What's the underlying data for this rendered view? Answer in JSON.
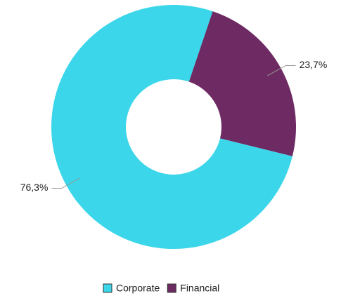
{
  "chart_data": {
    "type": "donut",
    "categories": [
      "Financial",
      "Corporate"
    ],
    "values": [
      23.7,
      76.3
    ],
    "value_labels": [
      "23,7%",
      "76,3%"
    ],
    "colors": [
      "#6e2a63",
      "#3bd6ea"
    ],
    "legend": "bottom"
  }
}
